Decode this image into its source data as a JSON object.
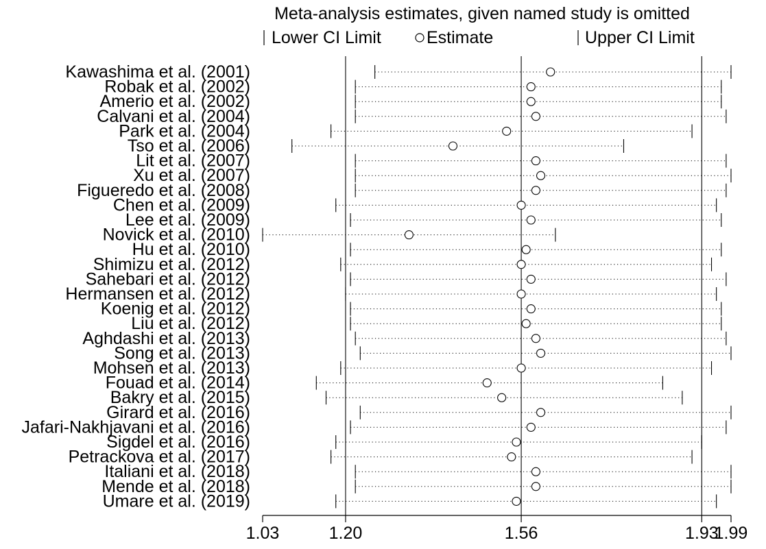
{
  "chart_data": {
    "type": "forest",
    "title": "Meta-analysis estimates, given named study is omitted",
    "legend": {
      "placement": "top",
      "items": [
        {
          "symbol": "|",
          "label": "Lower CI Limit"
        },
        {
          "symbol": "○",
          "label": "Estimate"
        },
        {
          "symbol": "|",
          "label": "Upper CI Limit"
        }
      ]
    },
    "xlim": [
      1.03,
      1.99
    ],
    "xticks": [
      1.03,
      1.2,
      1.56,
      1.93,
      1.99
    ],
    "xtick_labels": [
      "1.03",
      "1.20",
      "1.56",
      "1.93",
      "1.99"
    ],
    "reference_lines": [
      1.2,
      1.56,
      1.93
    ],
    "studies": [
      {
        "label": "Kawashima et al. (2001)",
        "lower": 1.26,
        "estimate": 1.62,
        "upper": 1.99
      },
      {
        "label": "Robak et al. (2002)",
        "lower": 1.22,
        "estimate": 1.58,
        "upper": 1.97
      },
      {
        "label": "Amerio et al. (2002)",
        "lower": 1.22,
        "estimate": 1.58,
        "upper": 1.97
      },
      {
        "label": "Calvani et al. (2004)",
        "lower": 1.22,
        "estimate": 1.59,
        "upper": 1.98
      },
      {
        "label": "Park et al. (2004)",
        "lower": 1.17,
        "estimate": 1.53,
        "upper": 1.91
      },
      {
        "label": "Tso et al. (2006)",
        "lower": 1.09,
        "estimate": 1.42,
        "upper": 1.77
      },
      {
        "label": "Lit et al. (2007)",
        "lower": 1.22,
        "estimate": 1.59,
        "upper": 1.98
      },
      {
        "label": "Xu et al. (2007)",
        "lower": 1.22,
        "estimate": 1.6,
        "upper": 1.99
      },
      {
        "label": "Figueredo et al. (2008)",
        "lower": 1.22,
        "estimate": 1.59,
        "upper": 1.98
      },
      {
        "label": "Chen et al. (2009)",
        "lower": 1.18,
        "estimate": 1.56,
        "upper": 1.96
      },
      {
        "label": "Lee et al. (2009)",
        "lower": 1.21,
        "estimate": 1.58,
        "upper": 1.97
      },
      {
        "label": "Novick et al. (2010)",
        "lower": 1.03,
        "estimate": 1.33,
        "upper": 1.63
      },
      {
        "label": "Hu et al. (2010)",
        "lower": 1.21,
        "estimate": 1.57,
        "upper": 1.97
      },
      {
        "label": "Shimizu et al. (2012)",
        "lower": 1.19,
        "estimate": 1.56,
        "upper": 1.95
      },
      {
        "label": "Sahebari et al. (2012)",
        "lower": 1.21,
        "estimate": 1.58,
        "upper": 1.98
      },
      {
        "label": "Hermansen et al. (2012)",
        "lower": 1.2,
        "estimate": 1.56,
        "upper": 1.96
      },
      {
        "label": "Koenig et al. (2012)",
        "lower": 1.21,
        "estimate": 1.58,
        "upper": 1.97
      },
      {
        "label": "Liu et al. (2012)",
        "lower": 1.21,
        "estimate": 1.57,
        "upper": 1.97
      },
      {
        "label": "Aghdashi et al. (2013)",
        "lower": 1.22,
        "estimate": 1.59,
        "upper": 1.98
      },
      {
        "label": "Song et al. (2013)",
        "lower": 1.23,
        "estimate": 1.6,
        "upper": 1.99
      },
      {
        "label": "Mohsen et al. (2013)",
        "lower": 1.19,
        "estimate": 1.56,
        "upper": 1.95
      },
      {
        "label": "Fouad et al. (2014)",
        "lower": 1.14,
        "estimate": 1.49,
        "upper": 1.85
      },
      {
        "label": "Bakry et al. (2015)",
        "lower": 1.16,
        "estimate": 1.52,
        "upper": 1.89
      },
      {
        "label": "Girard et al. (2016)",
        "lower": 1.23,
        "estimate": 1.6,
        "upper": 1.99
      },
      {
        "label": "Jafari-Nakhjavani et al. (2016)",
        "lower": 1.21,
        "estimate": 1.58,
        "upper": 1.98
      },
      {
        "label": "Sigdel et al. (2016)",
        "lower": 1.18,
        "estimate": 1.55,
        "upper": 1.93
      },
      {
        "label": "Petrackova et al. (2017)",
        "lower": 1.17,
        "estimate": 1.54,
        "upper": 1.91
      },
      {
        "label": "Italiani et al. (2018)",
        "lower": 1.22,
        "estimate": 1.59,
        "upper": 1.99
      },
      {
        "label": "Mende et al. (2018)",
        "lower": 1.22,
        "estimate": 1.59,
        "upper": 1.99
      },
      {
        "label": "Umare et al. (2019)",
        "lower": 1.18,
        "estimate": 1.55,
        "upper": 1.96
      }
    ]
  }
}
